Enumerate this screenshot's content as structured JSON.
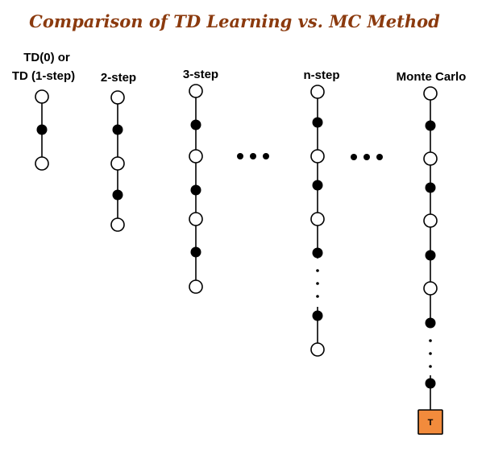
{
  "title": "Comparison of TD Learning vs. MC Method",
  "columns": [
    {
      "label_lines": [
        "TD(0) or",
        "TD (1-step)"
      ]
    },
    {
      "label_lines": [
        "2-step"
      ]
    },
    {
      "label_lines": [
        "3-step"
      ]
    },
    {
      "label_lines": [
        "n-step"
      ]
    },
    {
      "label_lines": [
        "Monte Carlo"
      ]
    }
  ],
  "terminal_label": "T",
  "colors": {
    "title": "#8b3a0e",
    "terminal_fill": "#f28b3c"
  }
}
